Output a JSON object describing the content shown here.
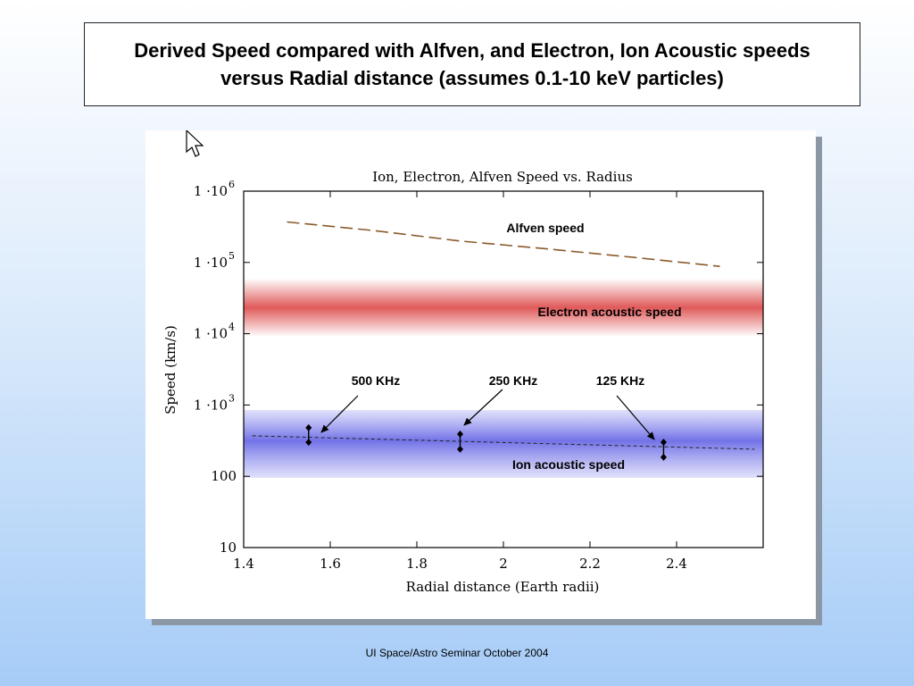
{
  "slide": {
    "title": "Derived Speed compared with Alfven, and Electron, Ion Acoustic speeds versus Radial distance (assumes 0.1-10 keV particles)",
    "footer": "UI Space/Astro Seminar October 2004",
    "cursor_icon": "arrow-cursor-icon"
  },
  "chart_data": {
    "type": "line",
    "title": "Ion, Electron, Alfven Speed vs. Radius",
    "xlabel": "Radial distance (Earth radii)",
    "ylabel": "Speed (km/s)",
    "xlim": [
      1.4,
      2.6
    ],
    "ylim": [
      10,
      1000000
    ],
    "y_scale": "log",
    "grid": false,
    "x_ticks": [
      {
        "value": 1.4,
        "label": "1.4"
      },
      {
        "value": 1.6,
        "label": "1.6"
      },
      {
        "value": 1.8,
        "label": "1.8"
      },
      {
        "value": 2.0,
        "label": "2"
      },
      {
        "value": 2.2,
        "label": "2.2"
      },
      {
        "value": 2.4,
        "label": "2.4"
      }
    ],
    "y_ticks": [
      {
        "value": 10,
        "label": "10"
      },
      {
        "value": 100,
        "label": "100"
      },
      {
        "value": 1000,
        "mantissa": "1 ·10",
        "exp": "3"
      },
      {
        "value": 10000,
        "mantissa": "1 ·10",
        "exp": "4"
      },
      {
        "value": 100000,
        "mantissa": "1 ·10",
        "exp": "5"
      },
      {
        "value": 1000000,
        "mantissa": "1 ·10",
        "exp": "6"
      }
    ],
    "series": [
      {
        "name": "Alfven speed",
        "style": "dashed",
        "color": "#8b5a2b",
        "x": [
          1.5,
          1.7,
          1.9,
          2.1,
          2.3,
          2.5
        ],
        "y": [
          370000,
          280000,
          200000,
          155000,
          118000,
          88000
        ]
      },
      {
        "name": "Ion acoustic speed",
        "style": "dotted",
        "color": "#222222",
        "x": [
          1.42,
          2.58
        ],
        "y": [
          370,
          240
        ]
      }
    ],
    "bands": [
      {
        "label": "Electron acoustic speed",
        "y_range": [
          9000,
          60000
        ],
        "color": "#e05a5a"
      },
      {
        "label": "Ion acoustic speed",
        "y_range": [
          95,
          850
        ],
        "color": "#6b6be6"
      }
    ],
    "measurements": [
      {
        "label": "500 KHz",
        "x": 1.55,
        "y_low": 300,
        "y_high": 480
      },
      {
        "label": "250 KHz",
        "x": 1.9,
        "y_low": 240,
        "y_high": 390
      },
      {
        "label": "125 KHz",
        "x": 2.37,
        "y_low": 185,
        "y_high": 300
      }
    ]
  }
}
